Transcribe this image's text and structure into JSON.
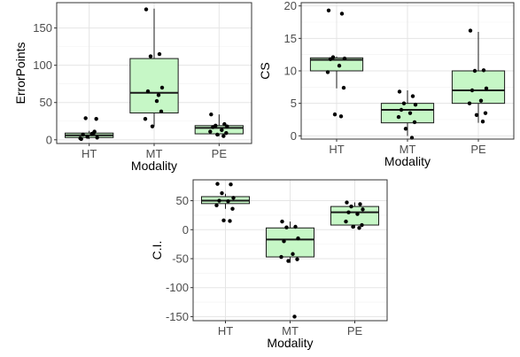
{
  "chart_data": [
    {
      "type": "box",
      "xlabel": "Modality",
      "ylabel": "ErrorPoints",
      "categories": [
        "HT",
        "MT",
        "PE"
      ],
      "yticks": [
        0,
        50,
        100,
        150
      ],
      "ylim": [
        -5,
        184
      ],
      "grid": true,
      "legend": "none",
      "boxes": [
        {
          "q1": 3,
          "median": 6,
          "q3": 9,
          "whisker_low": 1,
          "whisker_high": 12
        },
        {
          "q1": 36,
          "median": 63,
          "q3": 109,
          "whisker_low": 18,
          "whisker_high": 176
        },
        {
          "q1": 8,
          "median": 16,
          "q3": 19,
          "whisker_low": 5,
          "whisker_high": 34
        }
      ],
      "points": [
        [
          1,
          11,
          29,
          3,
          7,
          8,
          2,
          28,
          4,
          9
        ],
        [
          175,
          115,
          112,
          70,
          65,
          52,
          28,
          38,
          18,
          60
        ],
        [
          34,
          21,
          19,
          18,
          17,
          13,
          11,
          9,
          7,
          5
        ]
      ]
    },
    {
      "type": "box",
      "xlabel": "Modality",
      "ylabel": "CS",
      "categories": [
        "HT",
        "MT",
        "PE"
      ],
      "yticks": [
        0,
        5,
        10,
        15,
        20
      ],
      "ylim": [
        -0.5,
        20.5
      ],
      "grid": true,
      "legend": "none",
      "boxes": [
        {
          "q1": 10,
          "median": 11.7,
          "q3": 12,
          "whisker_low": 7.3,
          "whisker_high": 12.2
        },
        {
          "q1": 2,
          "median": 4,
          "q3": 5,
          "whisker_low": 0,
          "whisker_high": 7
        },
        {
          "q1": 5,
          "median": 7,
          "q3": 10,
          "whisker_low": 2,
          "whisker_high": 16
        }
      ],
      "points": [
        [
          19.3,
          18.8,
          12.1,
          11.9,
          11.8,
          10.8,
          9.8,
          7.4,
          3.3,
          3.0
        ],
        [
          6.8,
          6.1,
          5.0,
          4.8,
          4.0,
          3.5,
          2.9,
          2.1,
          1.1,
          -0.3
        ],
        [
          16.2,
          10.1,
          10.0,
          7.3,
          7.0,
          5.4,
          5.0,
          3.5,
          3.2,
          2.2
        ]
      ]
    },
    {
      "type": "box",
      "xlabel": "Modality",
      "ylabel": "C.I.",
      "categories": [
        "HT",
        "MT",
        "PE"
      ],
      "yticks": [
        50,
        0,
        -50,
        -100,
        -150
      ],
      "ylim": [
        -157,
        86
      ],
      "grid": true,
      "legend": "none",
      "boxes": [
        {
          "q1": 45,
          "median": 50,
          "q3": 57,
          "whisker_low": 36,
          "whisker_high": 62
        },
        {
          "q1": -47,
          "median": -17,
          "q3": 3,
          "whisker_low": -57,
          "whisker_high": 14
        },
        {
          "q1": 8,
          "median": 30,
          "q3": 40,
          "whisker_low": 3,
          "whisker_high": 47
        }
      ],
      "points": [
        [
          79,
          78,
          63,
          55,
          50,
          49,
          42,
          36,
          16,
          15
        ],
        [
          14,
          5,
          4,
          -15,
          -20,
          -42,
          -47,
          -51,
          -54,
          -150
        ],
        [
          47,
          44,
          40,
          35,
          30,
          27,
          14,
          8,
          5,
          3
        ]
      ]
    }
  ]
}
